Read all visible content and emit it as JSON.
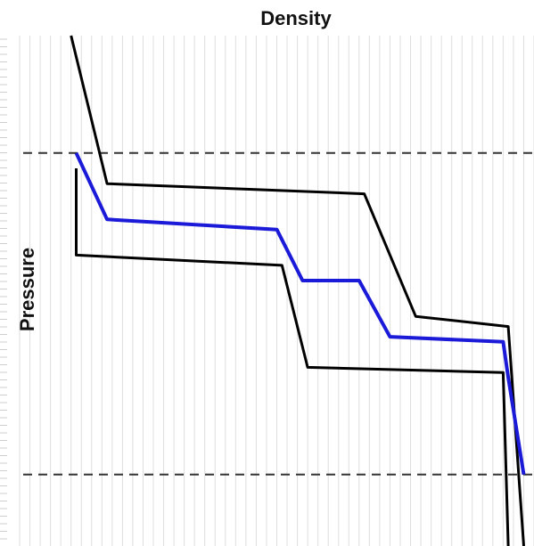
{
  "chart_data": {
    "type": "line",
    "title": "Density",
    "xlabel": "",
    "ylabel": "Pressure",
    "xlim": [
      0,
      100
    ],
    "ylim": [
      0,
      100
    ],
    "y_inverted": true,
    "grid": "vertical",
    "series": [
      {
        "color": "#000000",
        "points": [
          [
            10,
            0
          ],
          [
            17,
            29
          ],
          [
            67,
            31
          ],
          [
            77,
            55
          ],
          [
            95,
            57
          ],
          [
            98,
            100
          ]
        ]
      },
      {
        "color": "#1a1ad8",
        "points": [
          [
            11,
            23
          ],
          [
            17,
            36
          ],
          [
            50,
            38
          ],
          [
            55,
            48
          ],
          [
            66,
            48
          ],
          [
            72,
            59
          ],
          [
            94,
            60
          ],
          [
            95,
            67
          ],
          [
            98,
            86
          ]
        ]
      },
      {
        "color": "#000000",
        "points": [
          [
            11,
            26
          ],
          [
            11,
            43
          ],
          [
            51,
            45
          ],
          [
            56,
            65
          ],
          [
            94,
            66
          ],
          [
            95,
            100
          ]
        ]
      }
    ],
    "reference_lines": [
      {
        "orientation": "horizontal",
        "y": 23,
        "style": "dashed",
        "color": "#333333"
      },
      {
        "orientation": "horizontal",
        "y": 86,
        "style": "dashed",
        "color": "#333333"
      }
    ]
  }
}
